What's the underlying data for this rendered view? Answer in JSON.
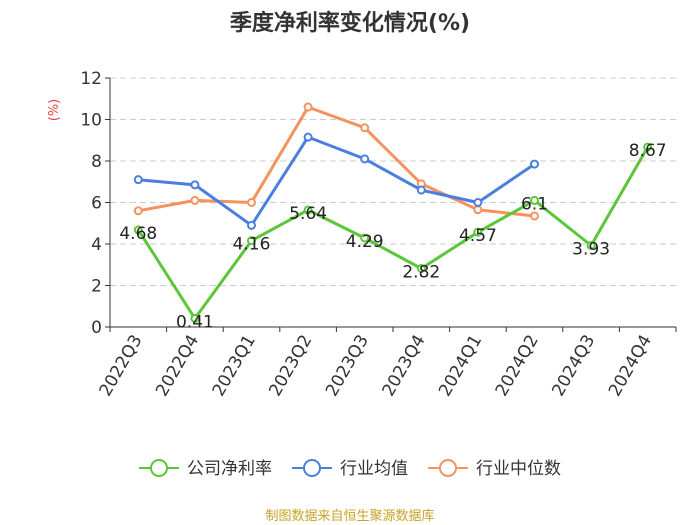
{
  "chart_data": {
    "type": "line",
    "title": "季度净利率变化情况(%)",
    "ylabel": "(%)",
    "xlabel": "",
    "ylim": [
      0,
      12
    ],
    "yticks": [
      0,
      2,
      4,
      6,
      8,
      10,
      12
    ],
    "grid": true,
    "legend_position": "bottom",
    "categories": [
      "2022Q3",
      "2022Q4",
      "2023Q1",
      "2023Q2",
      "2023Q3",
      "2023Q4",
      "2024Q1",
      "2024Q2",
      "2024Q3",
      "2024Q4"
    ],
    "series": [
      {
        "name": "公司净利率",
        "color": "#5cc639",
        "values": [
          4.68,
          0.41,
          4.16,
          5.64,
          4.29,
          2.82,
          4.57,
          6.1,
          3.93,
          8.67
        ],
        "labels": [
          "4.68",
          "0.41",
          "4.16",
          "5.64",
          "4.29",
          "2.82",
          "4.57",
          "6.1",
          "3.93",
          "8.67"
        ]
      },
      {
        "name": "行业均值",
        "color": "#4a7fe0",
        "values": [
          7.1,
          6.85,
          4.9,
          9.15,
          8.1,
          6.6,
          6.0,
          7.85,
          null,
          null
        ]
      },
      {
        "name": "行业中位数",
        "color": "#f5925e",
        "values": [
          5.6,
          6.1,
          6.0,
          10.6,
          9.6,
          6.9,
          5.65,
          5.35,
          null,
          null
        ]
      }
    ]
  },
  "source_text": "制图数据来自恒生聚源数据库"
}
